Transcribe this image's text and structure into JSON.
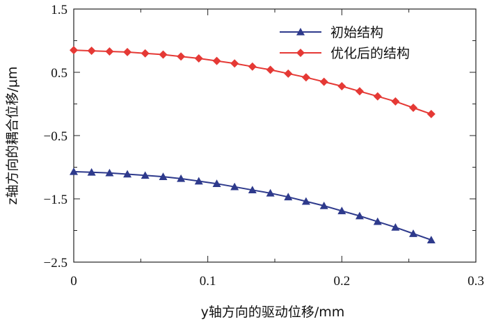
{
  "chart_data": {
    "type": "line",
    "title": "",
    "xlabel": "y轴方向的驱动位移/mm",
    "ylabel": "z轴方向的耦合位移/μm",
    "xlim": [
      0,
      0.3
    ],
    "ylim": [
      -2.5,
      1.5
    ],
    "x_ticks": [
      "0",
      "0.1",
      "0.2",
      "0.3"
    ],
    "y_ticks": [
      "1.5",
      "0.5",
      "−0.5",
      "−1.5",
      "−2.5"
    ],
    "grid": false,
    "legend_position": "top-right",
    "series": [
      {
        "name": "初始结构",
        "color": "#2e3a8c",
        "marker": "triangle",
        "x": [
          0,
          0.0133,
          0.0267,
          0.04,
          0.0533,
          0.0667,
          0.08,
          0.0933,
          0.1067,
          0.12,
          0.1333,
          0.1467,
          0.16,
          0.1733,
          0.1867,
          0.2,
          0.2133,
          0.2267,
          0.24,
          0.2533,
          0.2667
        ],
        "values": [
          -1.07,
          -1.08,
          -1.09,
          -1.11,
          -1.13,
          -1.15,
          -1.18,
          -1.22,
          -1.26,
          -1.31,
          -1.36,
          -1.41,
          -1.47,
          -1.54,
          -1.61,
          -1.69,
          -1.77,
          -1.86,
          -1.95,
          -2.05,
          -2.15
        ]
      },
      {
        "name": "优化后的结构",
        "color": "#e53935",
        "marker": "diamond",
        "x": [
          0,
          0.0133,
          0.0267,
          0.04,
          0.0533,
          0.0667,
          0.08,
          0.0933,
          0.1067,
          0.12,
          0.1333,
          0.1467,
          0.16,
          0.1733,
          0.1867,
          0.2,
          0.2133,
          0.2267,
          0.24,
          0.2533,
          0.2667
        ],
        "values": [
          0.85,
          0.84,
          0.83,
          0.82,
          0.8,
          0.78,
          0.75,
          0.72,
          0.68,
          0.64,
          0.59,
          0.54,
          0.48,
          0.42,
          0.35,
          0.28,
          0.2,
          0.12,
          0.04,
          -0.06,
          -0.16
        ]
      }
    ]
  }
}
